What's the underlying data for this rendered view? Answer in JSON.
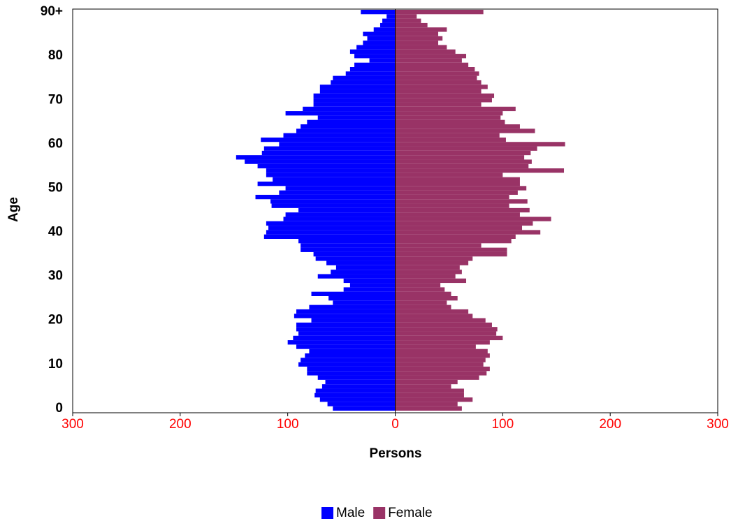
{
  "chart_data": {
    "type": "pyramid",
    "x_label": "Persons",
    "y_label": "Age",
    "categories": [
      "0",
      null,
      null,
      null,
      null,
      null,
      null,
      null,
      null,
      null,
      "10",
      null,
      null,
      null,
      null,
      null,
      null,
      null,
      null,
      null,
      "20",
      null,
      null,
      null,
      null,
      null,
      null,
      null,
      null,
      null,
      "30",
      null,
      null,
      null,
      null,
      null,
      null,
      null,
      null,
      null,
      "40",
      null,
      null,
      null,
      null,
      null,
      null,
      null,
      null,
      null,
      "50",
      null,
      null,
      null,
      null,
      null,
      null,
      null,
      null,
      null,
      "60",
      null,
      null,
      null,
      null,
      null,
      null,
      null,
      null,
      null,
      "70",
      null,
      null,
      null,
      null,
      null,
      null,
      null,
      null,
      null,
      "80",
      null,
      null,
      null,
      null,
      null,
      null,
      null,
      null,
      null,
      "90+"
    ],
    "series": [
      {
        "name": "Male",
        "color": "#0000ff",
        "values": [
          -58,
          -63,
          -70,
          -75,
          -74,
          -68,
          -65,
          -72,
          -82,
          -82,
          -90,
          -88,
          -84,
          -80,
          -92,
          -100,
          -95,
          -90,
          -92,
          -92,
          -78,
          -94,
          -92,
          -80,
          -58,
          -62,
          -78,
          -48,
          -42,
          -48,
          -72,
          -60,
          -55,
          -64,
          -74,
          -76,
          -88,
          -88,
          -90,
          -122,
          -120,
          -118,
          -120,
          -104,
          -102,
          -90,
          -115,
          -116,
          -130,
          -108,
          -102,
          -128,
          -114,
          -120,
          -120,
          -128,
          -140,
          -148,
          -124,
          -122,
          -108,
          -125,
          -104,
          -92,
          -88,
          -82,
          -72,
          -102,
          -86,
          -76,
          -76,
          -76,
          -70,
          -70,
          -60,
          -58,
          -46,
          -42,
          -38,
          -24,
          -38,
          -42,
          -36,
          -30,
          -26,
          -30,
          -20,
          -14,
          -12,
          -8,
          -32
        ]
      },
      {
        "name": "Female",
        "color": "#993366",
        "values": [
          62,
          58,
          72,
          64,
          64,
          52,
          58,
          78,
          85,
          88,
          82,
          84,
          88,
          86,
          75,
          88,
          100,
          94,
          95,
          90,
          84,
          72,
          68,
          52,
          48,
          58,
          52,
          46,
          42,
          66,
          56,
          62,
          60,
          68,
          72,
          104,
          104,
          80,
          108,
          112,
          135,
          118,
          128,
          145,
          116,
          125,
          106,
          123,
          106,
          114,
          122,
          116,
          116,
          100,
          157,
          124,
          127,
          120,
          126,
          132,
          158,
          103,
          97,
          130,
          116,
          102,
          98,
          100,
          112,
          80,
          90,
          92,
          80,
          86,
          80,
          76,
          78,
          74,
          68,
          62,
          66,
          56,
          48,
          40,
          44,
          40,
          48,
          30,
          24,
          20,
          82
        ]
      }
    ],
    "xlim": [
      -300,
      300
    ],
    "xticks": [
      {
        "value": -300,
        "label": "300"
      },
      {
        "value": -200,
        "label": "200"
      },
      {
        "value": -100,
        "label": "100"
      },
      0,
      100,
      200,
      300
    ],
    "tick_label_color": "#ff0000",
    "legend": "bottom"
  }
}
